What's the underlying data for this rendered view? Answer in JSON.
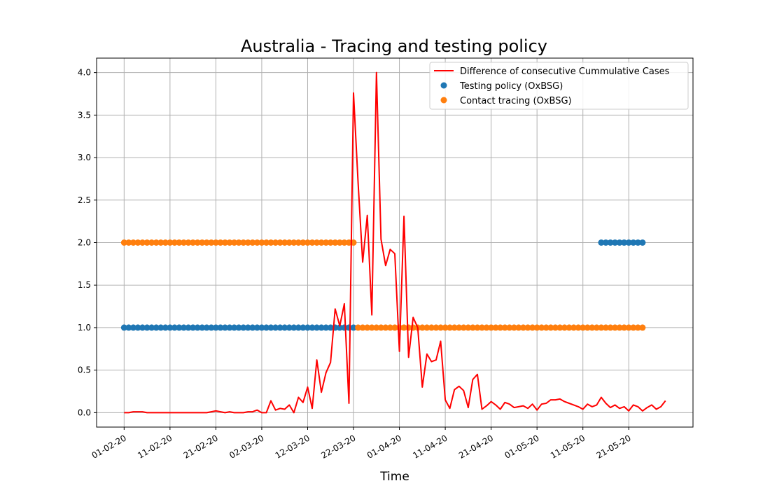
{
  "chart_data": {
    "type": "line",
    "title": "Australia - Tracing and testing policy",
    "xlabel": "Time",
    "ylabel": "",
    "ylim": [
      -0.17,
      4.17
    ],
    "yticks": [
      0.0,
      0.5,
      1.0,
      1.5,
      2.0,
      2.5,
      3.0,
      3.5,
      4.0
    ],
    "ytick_labels": [
      "0.0",
      "0.5",
      "1.0",
      "1.5",
      "2.0",
      "2.5",
      "3.0",
      "3.5",
      "4.0"
    ],
    "x_start_date": "2020-02-01",
    "xlim_days": [
      -6,
      124
    ],
    "xticks_days": [
      0,
      10,
      20,
      30,
      40,
      50,
      60,
      70,
      80,
      90,
      100,
      110
    ],
    "xtick_labels": [
      "01-02-20",
      "11-02-20",
      "21-02-20",
      "02-03-20",
      "12-03-20",
      "22-03-20",
      "01-04-20",
      "11-04-20",
      "21-04-20",
      "01-05-20",
      "11-05-20",
      "21-05-20"
    ],
    "grid": true,
    "legend_position": "top-right",
    "colors": {
      "line": "#ff0000",
      "testing": "#1f77b4",
      "tracing": "#ff7f0e",
      "grid": "#b0b0b0"
    },
    "series": [
      {
        "name": "Difference of consecutive Cummulative Cases",
        "kind": "line",
        "values": [
          0,
          0,
          0.01,
          0.01,
          0.01,
          0,
          0,
          0,
          0,
          0,
          0,
          0,
          0,
          0,
          0,
          0,
          0,
          0,
          0,
          0.01,
          0.02,
          0.01,
          0,
          0.01,
          0,
          0,
          0,
          0.01,
          0.01,
          0.03,
          0,
          0,
          0.14,
          0.03,
          0.05,
          0.04,
          0.09,
          0,
          0.18,
          0.12,
          0.3,
          0.05,
          0.62,
          0.24,
          0.47,
          0.59,
          1.22,
          1.02,
          1.28,
          0.11,
          3.76,
          2.7,
          1.77,
          2.32,
          1.15,
          4.0,
          2.04,
          1.73,
          1.92,
          1.87,
          0.72,
          2.31,
          0.65,
          1.12,
          1.0,
          0.3,
          0.69,
          0.6,
          0.62,
          0.84,
          0.15,
          0.05,
          0.27,
          0.31,
          0.26,
          0.06,
          0.39,
          0.45,
          0.04,
          0.08,
          0.13,
          0.09,
          0.04,
          0.12,
          0.1,
          0.06,
          0.07,
          0.08,
          0.05,
          0.1,
          0.03,
          0.1,
          0.11,
          0.15,
          0.15,
          0.16,
          0.13,
          0.11,
          0.09,
          0.07,
          0.04,
          0.1,
          0.07,
          0.09,
          0.18,
          0.11,
          0.06,
          0.09,
          0.05,
          0.07,
          0.02,
          0.09,
          0.07,
          0.02,
          0.06,
          0.09,
          0.04,
          0.07,
          0.14
        ]
      },
      {
        "name": "Testing policy (OxBSG)",
        "kind": "scatter",
        "segments": [
          {
            "start_day": 0,
            "end_day": 50,
            "value": 1
          },
          {
            "start_day": 104,
            "end_day": 113,
            "value": 2
          }
        ]
      },
      {
        "name": "Contact tracing (OxBSG)",
        "kind": "scatter",
        "segments": [
          {
            "start_day": 0,
            "end_day": 50,
            "value": 2
          },
          {
            "start_day": 51,
            "end_day": 113,
            "value": 1
          }
        ]
      }
    ]
  }
}
